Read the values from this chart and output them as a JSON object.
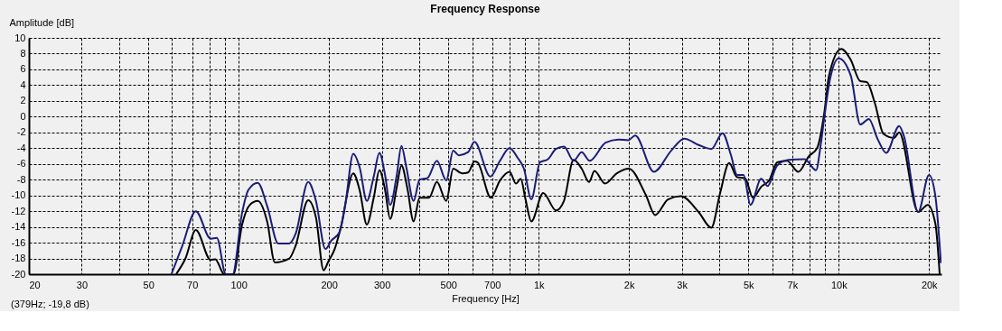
{
  "chart_data": {
    "type": "line",
    "title": "Frequency Response",
    "xlabel": "Frequency [Hz]",
    "ylabel": "Amplitude [dB]",
    "annotations": [
      "(379Hz; -19,8 dB)"
    ],
    "log": "x",
    "grid": true,
    "legend": false,
    "line_style": "solid",
    "marker": "none",
    "xlim": [
      20,
      22000
    ],
    "ylim": [
      -20,
      10
    ],
    "xticks": [
      20,
      30,
      {
        "value": 40,
        "label": null
      },
      50,
      {
        "value": 60,
        "label": null
      },
      70,
      {
        "value": 80,
        "label": null
      },
      {
        "value": 90,
        "label": null
      },
      100,
      200,
      300,
      {
        "value": 400,
        "label": null
      },
      500,
      {
        "value": 600,
        "label": null
      },
      700,
      {
        "value": 800,
        "label": null
      },
      {
        "value": 900,
        "label": null
      },
      {
        "value": 1000,
        "label": "1k"
      },
      {
        "value": 2000,
        "label": "2k"
      },
      {
        "value": 3000,
        "label": "3k"
      },
      {
        "value": 4000,
        "label": null
      },
      {
        "value": 5000,
        "label": "5k"
      },
      {
        "value": 6000,
        "label": null
      },
      {
        "value": 7000,
        "label": "7k"
      },
      {
        "value": 8000,
        "label": null
      },
      {
        "value": 9000,
        "label": null
      },
      {
        "value": 10000,
        "label": "10k"
      },
      {
        "value": 20000,
        "label": "20k"
      }
    ],
    "yticks": [
      -20,
      -18,
      -16,
      -14,
      -12,
      -10,
      -8,
      -6,
      -4,
      -2,
      0,
      2,
      4,
      6,
      8,
      10
    ],
    "series": [
      {
        "color": "#000000",
        "x": [
          61.9,
          66.5,
          72,
          80.7,
          83.6,
          89.5,
          96,
          102.7,
          109,
          115.8,
          124.6,
          132,
          147.5,
          154.8,
          170.5,
          181,
          192,
          199,
          209,
          219,
          241,
          253,
          267.5,
          282,
          294.6,
          307,
          320,
          336,
          349,
          365,
          383,
          401,
          431,
          458,
          492,
          519,
          556,
          582,
          611,
          625,
          693,
          743,
          800,
          840,
          871,
          904,
          945,
          1035,
          1142,
          1214,
          1307,
          1391,
          1472,
          1534,
          1664,
          1822,
          1996,
          2273,
          2446,
          2699,
          2978,
          3411,
          3762,
          4025,
          4313,
          4586,
          4870,
          5179,
          5515,
          5865,
          6236,
          6720,
          7338,
          7962,
          8470,
          8960,
          9280,
          10200,
          10970,
          11800,
          12400,
          13200,
          14100,
          15300,
          15900,
          18400,
          19800,
          21000,
          21700
        ],
        "values": [
          -20,
          -18.0,
          -14.4,
          -18.2,
          -18.1,
          -20,
          -20,
          -13.7,
          -11.2,
          -10.7,
          -13.4,
          -18.5,
          -18.0,
          -16.4,
          -10.6,
          -12.8,
          -19.5,
          -18.4,
          -16.8,
          -14.1,
          -7.2,
          -9.3,
          -13.7,
          -10.3,
          -6.8,
          -9.1,
          -13.0,
          -9.1,
          -6.2,
          -9.1,
          -13.3,
          -10.3,
          -10.3,
          -8.3,
          -10.7,
          -6.6,
          -7.2,
          -7.1,
          -5.7,
          -5.8,
          -10.3,
          -8.1,
          -7.0,
          -8.5,
          -7.9,
          -10.5,
          -13.3,
          -9.7,
          -11.9,
          -10.7,
          -5.5,
          -6.6,
          -8.3,
          -6.9,
          -8.5,
          -7.2,
          -6.6,
          -9.9,
          -12.5,
          -10.5,
          -10.1,
          -12.1,
          -14.1,
          -9.7,
          -5.9,
          -7.7,
          -7.8,
          -10.3,
          -8.9,
          -8.1,
          -5.8,
          -5.6,
          -7.0,
          -5.0,
          -4.0,
          0.6,
          5.2,
          8.6,
          7.2,
          4.5,
          4.4,
          1.7,
          -2.2,
          -2.7,
          -2.0,
          -12.1,
          -11.2,
          -13.6,
          -20
        ]
      },
      {
        "color": "#1c1c78",
        "x": [
          59.7,
          64.9,
          72,
          80.7,
          84.6,
          90.6,
          95.5,
          102.7,
          107.8,
          115.8,
          124.6,
          135.5,
          147.5,
          154.8,
          170.5,
          181,
          194.6,
          204,
          216.6,
          227,
          241,
          253,
          267.5,
          282,
          294.6,
          307,
          320,
          336,
          349,
          362,
          383,
          401,
          426,
          458,
          492,
          519,
          542,
          582,
          611,
          690,
          743,
          800,
          850,
          893,
          945,
          1010,
          1074,
          1142,
          1214,
          1307,
          1391,
          1479,
          1672,
          1845,
          1987,
          2098,
          2420,
          2768,
          3057,
          3411,
          3762,
          4102,
          4367,
          4586,
          4817,
          5080,
          5515,
          5792,
          6236,
          6804,
          7703,
          8401,
          8714,
          8960,
          9360,
          10000,
          10970,
          11800,
          12600,
          13500,
          14400,
          15900,
          16500,
          18400,
          20000,
          21000,
          21900
        ],
        "values": [
          -20,
          -16.4,
          -12.0,
          -15.5,
          -15.4,
          -20,
          -20,
          -12.2,
          -9.3,
          -8.4,
          -11.4,
          -16.1,
          -16.1,
          -14.9,
          -8.3,
          -10.7,
          -16.8,
          -15.7,
          -14.7,
          -11.0,
          -4.7,
          -6.4,
          -10.7,
          -7.6,
          -4.6,
          -7.2,
          -11.2,
          -7.6,
          -3.7,
          -6.4,
          -10.7,
          -8.0,
          -7.8,
          -5.6,
          -8.1,
          -4.3,
          -4.9,
          -4.5,
          -3.2,
          -7.6,
          -5.6,
          -4.0,
          -5.2,
          -6.6,
          -10.5,
          -5.8,
          -5.4,
          -4.1,
          -3.8,
          -5.6,
          -4.5,
          -5.6,
          -3.3,
          -2.9,
          -3.0,
          -2.4,
          -7.0,
          -4.3,
          -2.8,
          -3.6,
          -4.1,
          -2.1,
          -4.8,
          -7.4,
          -7.4,
          -11.2,
          -7.9,
          -8.8,
          -6.2,
          -5.5,
          -5.4,
          -6.8,
          -3.5,
          0.0,
          4.8,
          7.4,
          5.2,
          -1.0,
          -0.3,
          -2.9,
          -4.6,
          -1.2,
          -2.5,
          -12.1,
          -7.4,
          -10.1,
          -18.6
        ]
      }
    ]
  }
}
